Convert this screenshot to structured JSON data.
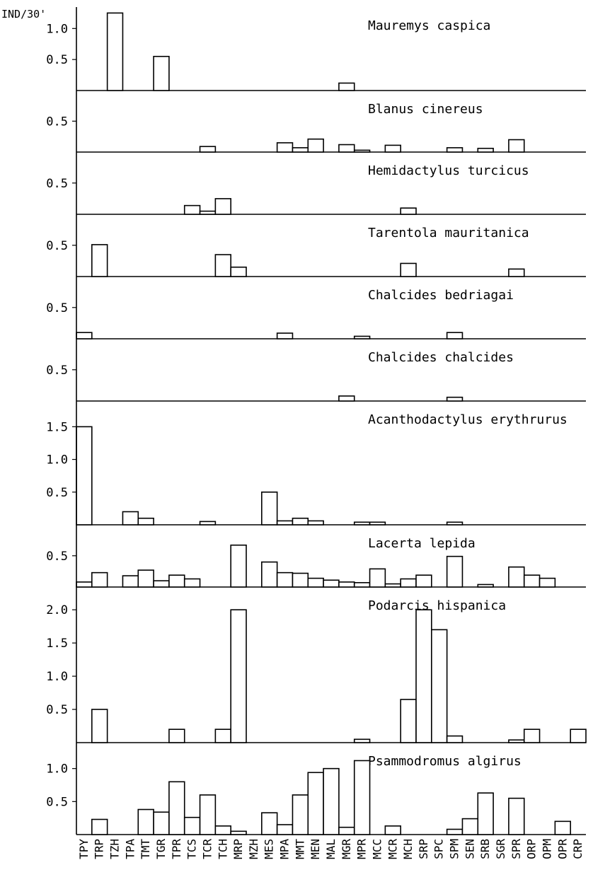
{
  "chart_data": {
    "type": "bar",
    "ylabel": "IND/30'",
    "categories": [
      "TPY",
      "TRP",
      "TZH",
      "TPA",
      "TMT",
      "TGR",
      "TPR",
      "TCS",
      "TCR",
      "TCH",
      "MRP",
      "MZH",
      "MES",
      "MPA",
      "MMT",
      "MEN",
      "MAL",
      "MGR",
      "MPR",
      "MCC",
      "MCR",
      "MCH",
      "SRP",
      "SPC",
      "SPM",
      "SEN",
      "SRB",
      "SGR",
      "SPR",
      "ORP",
      "OPM",
      "OPR",
      "CRP"
    ],
    "panels": [
      {
        "title": "Mauremys caspica",
        "ylim": [
          0,
          1.3
        ],
        "yticks": [
          0.5,
          1.0
        ],
        "values": [
          0,
          0,
          1.25,
          0,
          0,
          0.55,
          0,
          0,
          0,
          0,
          0,
          0,
          0,
          0,
          0,
          0,
          0,
          0.12,
          0,
          0,
          0,
          0,
          0,
          0,
          0,
          0,
          0,
          0,
          0,
          0,
          0,
          0,
          0
        ]
      },
      {
        "title": "Blanus cinereus",
        "ylim": [
          0,
          0.95
        ],
        "yticks": [
          0.5
        ],
        "values": [
          0,
          0,
          0,
          0,
          0,
          0,
          0,
          0,
          0.09,
          0,
          0,
          0,
          0,
          0.15,
          0.07,
          0.21,
          0,
          0.12,
          0.03,
          0,
          0.11,
          0,
          0,
          0,
          0.07,
          0,
          0.06,
          0,
          0.2,
          0,
          0,
          0,
          0
        ]
      },
      {
        "title": "Hemidactylus turcicus",
        "ylim": [
          0,
          0.95
        ],
        "yticks": [
          0.5
        ],
        "values": [
          0,
          0,
          0,
          0,
          0,
          0,
          0,
          0.14,
          0.05,
          0.25,
          0,
          0,
          0,
          0,
          0,
          0,
          0,
          0,
          0,
          0,
          0,
          0.1,
          0,
          0,
          0,
          0,
          0,
          0,
          0,
          0,
          0,
          0,
          0
        ]
      },
      {
        "title": "Tarentola mauritanica",
        "ylim": [
          0,
          0.95
        ],
        "yticks": [
          0.5
        ],
        "values": [
          0,
          0.51,
          0,
          0,
          0,
          0,
          0,
          0,
          0,
          0.35,
          0.15,
          0,
          0,
          0,
          0,
          0,
          0,
          0,
          0,
          0,
          0,
          0.21,
          0,
          0,
          0,
          0,
          0,
          0,
          0.12,
          0,
          0,
          0,
          0
        ]
      },
      {
        "title": "Chalcides bedriagai",
        "ylim": [
          0,
          0.95
        ],
        "yticks": [
          0.5
        ],
        "values": [
          0.1,
          0,
          0,
          0,
          0,
          0,
          0,
          0,
          0,
          0,
          0,
          0,
          0,
          0.09,
          0,
          0,
          0,
          0,
          0.04,
          0,
          0,
          0,
          0,
          0,
          0.1,
          0,
          0,
          0,
          0,
          0,
          0,
          0,
          0
        ]
      },
      {
        "title": "Chalcides chalcides",
        "ylim": [
          0,
          0.95
        ],
        "yticks": [
          0.5
        ],
        "values": [
          0,
          0,
          0,
          0,
          0,
          0,
          0,
          0,
          0,
          0,
          0,
          0,
          0,
          0,
          0,
          0,
          0,
          0.08,
          0,
          0,
          0,
          0,
          0,
          0,
          0.06,
          0,
          0,
          0,
          0,
          0,
          0,
          0,
          0
        ]
      },
      {
        "title": "Acanthodactylus erythrurus",
        "ylim": [
          0,
          1.85
        ],
        "yticks": [
          0.5,
          1.0,
          1.5
        ],
        "values": [
          1.5,
          0,
          0,
          0.2,
          0.1,
          0,
          0,
          0,
          0.05,
          0,
          0,
          0,
          0.5,
          0.06,
          0.1,
          0.06,
          0,
          0,
          0.04,
          0.04,
          0,
          0,
          0,
          0,
          0.04,
          0,
          0,
          0,
          0,
          0,
          0,
          0,
          0
        ]
      },
      {
        "title": "Lacerta lepida",
        "ylim": [
          0,
          0.95
        ],
        "yticks": [
          0.5
        ],
        "values": [
          0.08,
          0.23,
          0,
          0.18,
          0.27,
          0.1,
          0.19,
          0.13,
          0,
          0,
          0.67,
          0,
          0.4,
          0.23,
          0.22,
          0.14,
          0.11,
          0.08,
          0.07,
          0.29,
          0.05,
          0.13,
          0.19,
          0,
          0.49,
          0,
          0.04,
          0,
          0.32,
          0.19,
          0.14,
          0,
          0
        ]
      },
      {
        "title": "Podarcis hispanica",
        "ylim": [
          0,
          2.3
        ],
        "yticks": [
          0.5,
          1.0,
          1.5,
          2.0
        ],
        "values": [
          0,
          0.5,
          0,
          0,
          0,
          0,
          0.2,
          0,
          0,
          0.2,
          2.0,
          0,
          0,
          0,
          0,
          0,
          0,
          0,
          0.05,
          0,
          0,
          0.65,
          2.0,
          1.7,
          0.1,
          0,
          0,
          0,
          0.04,
          0.2,
          0,
          0,
          0.2
        ]
      },
      {
        "title": "Psammodromus algirus",
        "ylim": [
          0,
          1.35
        ],
        "yticks": [
          0.5,
          1.0
        ],
        "values": [
          0,
          0.23,
          0,
          0,
          0.38,
          0.34,
          0.8,
          0.26,
          0.6,
          0.13,
          0.05,
          0,
          0.33,
          0.15,
          0.6,
          0.94,
          1.0,
          0.11,
          1.12,
          0,
          0.13,
          0,
          0,
          0,
          0.08,
          0.24,
          0.63,
          0,
          0.55,
          0,
          0,
          0.2,
          0
        ]
      }
    ]
  }
}
